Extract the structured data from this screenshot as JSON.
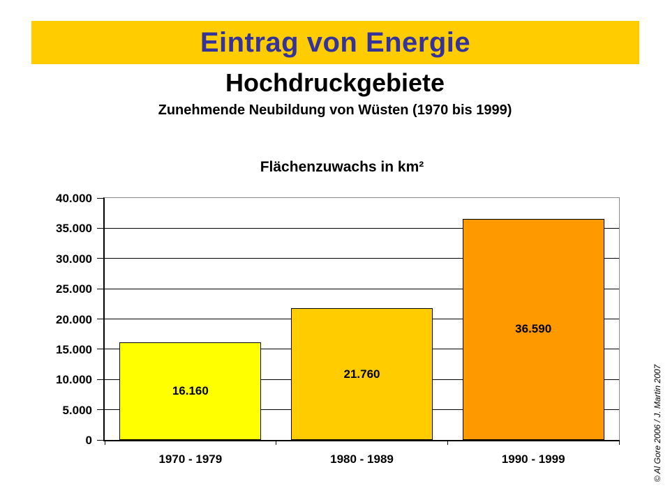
{
  "slide": {
    "banner": {
      "title": "Eintrag von Energie",
      "bg_color": "#FFCC00",
      "text_color": "#333399"
    },
    "heading": "Hochdruckgebiete",
    "subtitle": "Zunehmende Neubildung von Wüsten (1970 bis 1999)",
    "credit": "© Al Gore 2006 /  J. Martin 2007"
  },
  "chart_data": {
    "type": "bar",
    "title": "Flächenzuwachs in km²",
    "categories": [
      "1970 - 1979",
      "1980 - 1989",
      "1990 - 1999"
    ],
    "values": [
      16160,
      21760,
      36590
    ],
    "value_labels": [
      "16.160",
      "21.760",
      "36.590"
    ],
    "bar_colors": [
      "#FFFF00",
      "#FFCC00",
      "#FF9900"
    ],
    "ylim": [
      0,
      40000
    ],
    "y_tick_step": 5000,
    "y_tick_labels": [
      "0",
      "5.000",
      "10.000",
      "15.000",
      "20.000",
      "25.000",
      "30.000",
      "35.000",
      "40.000"
    ],
    "xlabel": "",
    "ylabel": "",
    "grid": true,
    "legend": "none",
    "gridline_color": "#000000",
    "bar_border_color": "#000000"
  }
}
